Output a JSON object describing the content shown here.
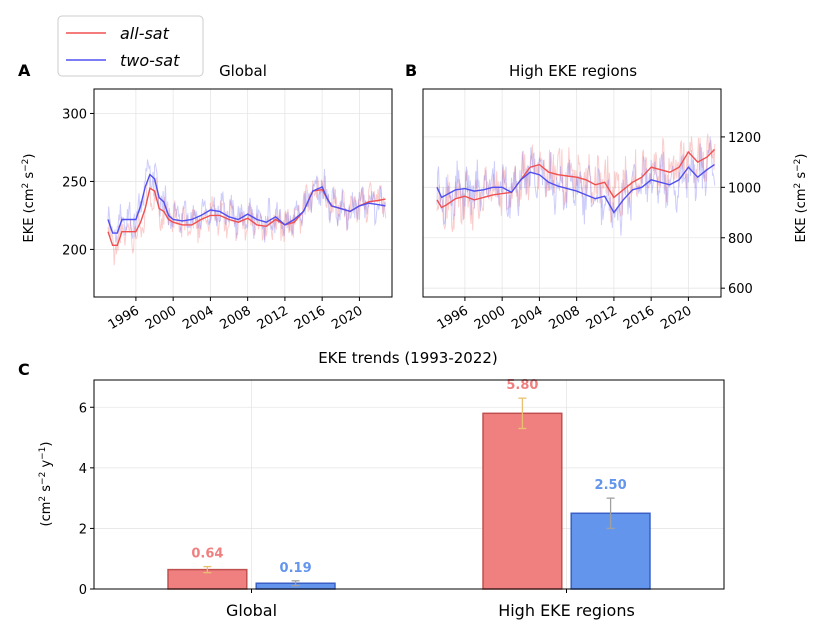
{
  "legend": {
    "items": [
      {
        "label": "all-sat",
        "color": "#f05050"
      },
      {
        "label": "two-sat",
        "color": "#5050f0"
      }
    ]
  },
  "chart_data": [
    {
      "type": "line",
      "panel_label": "A",
      "title": "Global",
      "ylabel_main": "EKE (cm",
      "ylabel_sup1": "2",
      "ylabel_mid": " s",
      "ylabel_sup2": "−2",
      "ylabel_end": ")",
      "xlim": [
        1991.5,
        2023.5
      ],
      "ylim": [
        165,
        318
      ],
      "xticks": [
        1996,
        2000,
        2004,
        2008,
        2012,
        2016,
        2020
      ],
      "yticks": [
        200,
        250,
        300
      ],
      "series": [
        {
          "name": "all-sat",
          "x": [
            1993.0,
            1993.5,
            1994.0,
            1994.5,
            1995.0,
            1995.5,
            1996.0,
            1996.5,
            1997.0,
            1997.5,
            1998.0,
            1998.5,
            1999.0,
            1999.5,
            2000.0,
            2001.0,
            2002.0,
            2003.0,
            2004.0,
            2005.0,
            2006.0,
            2007.0,
            2008.0,
            2009.0,
            2010.0,
            2011.0,
            2012.0,
            2013.0,
            2014.0,
            2015.0,
            2016.0,
            2016.5,
            2017.0,
            2018.0,
            2019.0,
            2020.0,
            2021.0,
            2022.0,
            2022.8
          ],
          "values": [
            213,
            203,
            203,
            213,
            213,
            213,
            213,
            220,
            230,
            245,
            243,
            230,
            228,
            222,
            220,
            218,
            218,
            222,
            225,
            225,
            222,
            220,
            223,
            218,
            217,
            222,
            218,
            220,
            228,
            243,
            244,
            238,
            232,
            230,
            228,
            232,
            235,
            236,
            237
          ]
        },
        {
          "name": "two-sat",
          "x": [
            1993.0,
            1993.5,
            1994.0,
            1994.5,
            1995.0,
            1995.5,
            1996.0,
            1996.5,
            1997.0,
            1997.5,
            1998.0,
            1998.5,
            1999.0,
            1999.5,
            2000.0,
            2001.0,
            2002.0,
            2003.0,
            2004.0,
            2005.0,
            2006.0,
            2007.0,
            2008.0,
            2009.0,
            2010.0,
            2011.0,
            2012.0,
            2013.0,
            2014.0,
            2015.0,
            2016.0,
            2016.5,
            2017.0,
            2018.0,
            2019.0,
            2020.0,
            2021.0,
            2022.0,
            2022.8
          ],
          "values": [
            222,
            212,
            212,
            222,
            222,
            222,
            222,
            232,
            246,
            255,
            252,
            238,
            235,
            225,
            222,
            221,
            222,
            225,
            229,
            228,
            224,
            222,
            226,
            222,
            220,
            224,
            218,
            222,
            228,
            243,
            246,
            238,
            232,
            230,
            228,
            232,
            234,
            233,
            232
          ]
        }
      ]
    },
    {
      "type": "line",
      "panel_label": "B",
      "title": "High EKE regions",
      "ylabel_main": "EKE (cm",
      "ylabel_sup1": "2",
      "ylabel_mid": " s",
      "ylabel_sup2": "−2",
      "ylabel_end": ")",
      "xlim": [
        1991.5,
        2023.5
      ],
      "ylim": [
        565,
        1390
      ],
      "xticks": [
        1996,
        2000,
        2004,
        2008,
        2012,
        2016,
        2020
      ],
      "yticks": [
        600,
        800,
        1000,
        1200
      ],
      "series": [
        {
          "name": "all-sat",
          "x": [
            1993.0,
            1993.5,
            1994.0,
            1995.0,
            1996.0,
            1997.0,
            1998.0,
            1999.0,
            2000.0,
            2001.0,
            2002.0,
            2003.0,
            2004.0,
            2005.0,
            2006.0,
            2007.0,
            2008.0,
            2009.0,
            2010.0,
            2011.0,
            2012.0,
            2013.0,
            2014.0,
            2015.0,
            2016.0,
            2017.0,
            2018.0,
            2019.0,
            2020.0,
            2021.0,
            2022.0,
            2022.8
          ],
          "values": [
            950,
            920,
            930,
            955,
            965,
            950,
            960,
            970,
            975,
            980,
            1030,
            1080,
            1090,
            1060,
            1050,
            1045,
            1040,
            1030,
            1010,
            1020,
            960,
            990,
            1020,
            1040,
            1080,
            1070,
            1060,
            1080,
            1140,
            1100,
            1120,
            1150
          ]
        },
        {
          "name": "two-sat",
          "x": [
            1993.0,
            1993.5,
            1994.0,
            1995.0,
            1996.0,
            1997.0,
            1998.0,
            1999.0,
            2000.0,
            2001.0,
            2002.0,
            2003.0,
            2004.0,
            2005.0,
            2006.0,
            2007.0,
            2008.0,
            2009.0,
            2010.0,
            2011.0,
            2012.0,
            2013.0,
            2014.0,
            2015.0,
            2016.0,
            2017.0,
            2018.0,
            2019.0,
            2020.0,
            2021.0,
            2022.0,
            2022.8
          ],
          "values": [
            1000,
            960,
            970,
            990,
            995,
            985,
            990,
            1000,
            1000,
            980,
            1030,
            1060,
            1050,
            1020,
            1005,
            995,
            985,
            970,
            955,
            965,
            900,
            950,
            990,
            1000,
            1030,
            1020,
            1010,
            1030,
            1080,
            1040,
            1070,
            1090
          ]
        }
      ]
    },
    {
      "type": "bar",
      "panel_label": "C",
      "title": "EKE trends (1993-2022)",
      "ylabel_main": "(cm",
      "ylabel_sup1": "2",
      "ylabel_mid": " s",
      "ylabel_sup2": "−2",
      "ylabel_mid2": " y",
      "ylabel_sup3": "−1",
      "ylabel_end": ")",
      "categories": [
        "Global",
        "High EKE regions"
      ],
      "ylim": [
        0,
        6.9
      ],
      "yticks": [
        0,
        2,
        4,
        6
      ],
      "series": [
        {
          "name": "all-sat",
          "values": [
            0.64,
            5.8
          ],
          "errors": [
            0.1,
            0.5
          ],
          "labels": [
            "0.64",
            "5.80"
          ],
          "fill": "#f08080",
          "edge": "#c05050",
          "label_color": "#f08080",
          "err_color": "#e8c070"
        },
        {
          "name": "two-sat",
          "values": [
            0.19,
            2.5
          ],
          "errors": [
            0.08,
            0.5
          ],
          "labels": [
            "0.19",
            "2.50"
          ],
          "fill": "#6495ed",
          "edge": "#3a60c8",
          "label_color": "#6495ed",
          "err_color": "#a0a0a0"
        }
      ]
    }
  ]
}
